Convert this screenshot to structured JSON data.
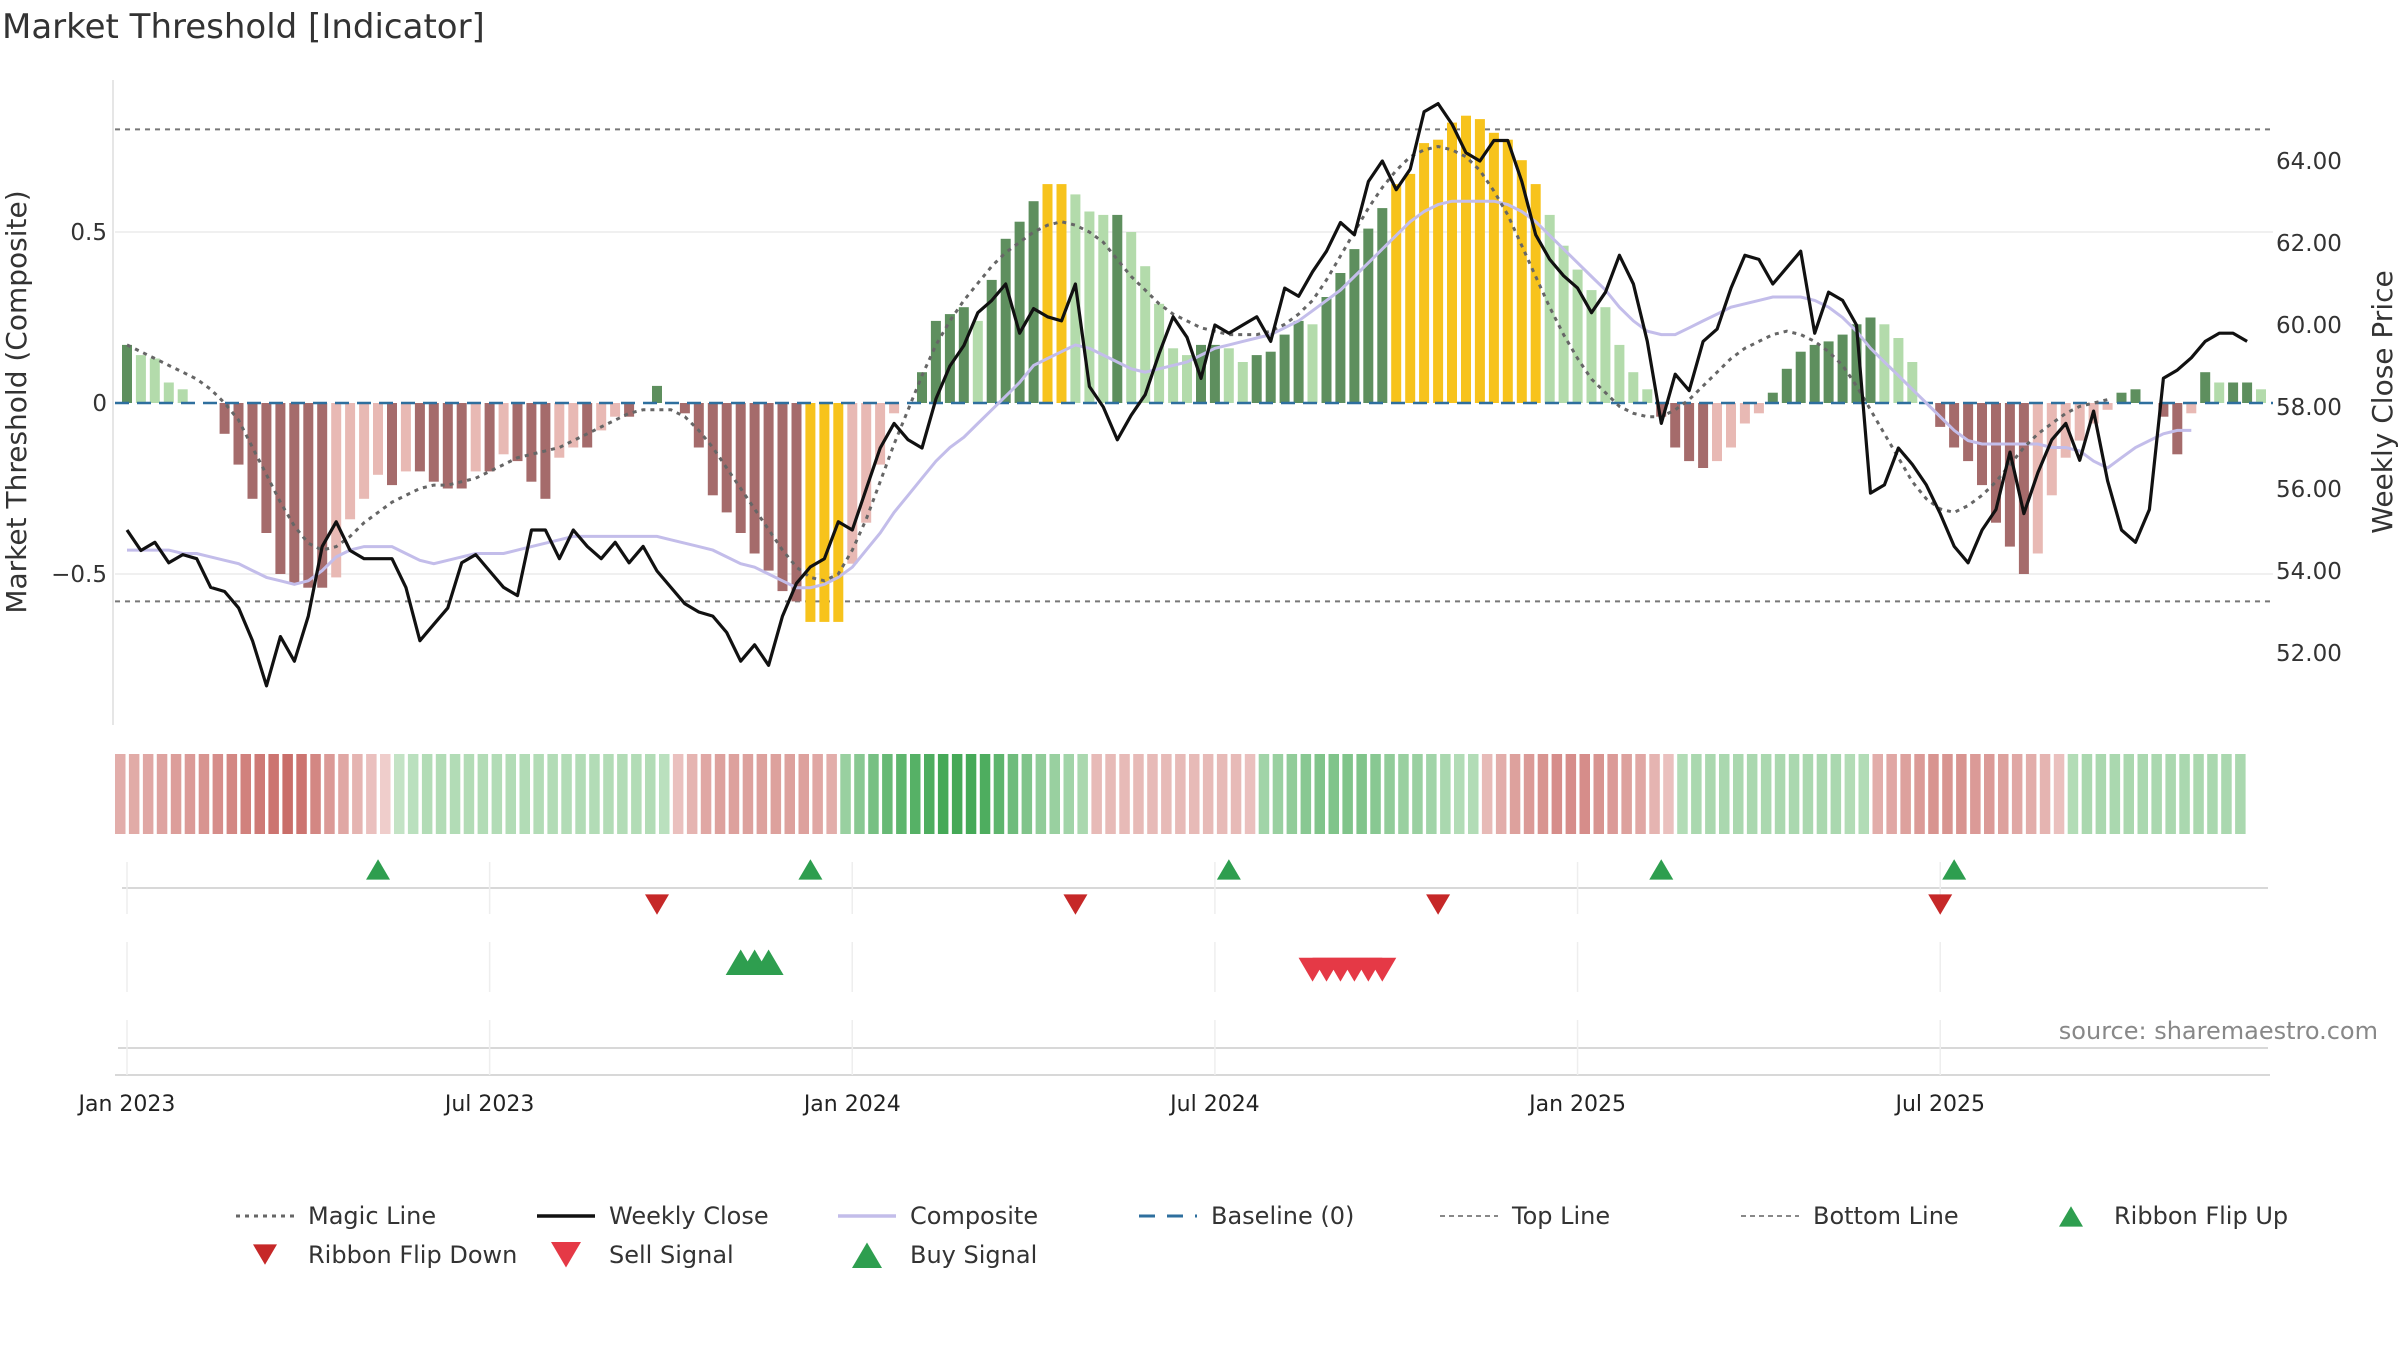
{
  "title": "Market Threshold [Indicator]",
  "source": "source: sharemaestro.com",
  "chart_data": {
    "type": "bar",
    "left_axis": {
      "label": "Market Threshold (Composite)",
      "ticks": [
        "0.5",
        "0",
        "−0.5"
      ],
      "tick_values": [
        0.5,
        0,
        -0.5
      ],
      "range": [
        -0.95,
        0.95
      ]
    },
    "right_axis": {
      "label": "Weekly Close Price",
      "ticks": [
        "64.00",
        "62.00",
        "60.00",
        "58.00",
        "56.00",
        "54.00",
        "52.00"
      ],
      "tick_values": [
        64,
        62,
        60,
        58,
        56,
        54,
        52
      ],
      "range": [
        50.3,
        65.9
      ]
    },
    "x_axis": {
      "ticks": [
        "Jan 2023",
        "Jul 2023",
        "Jan 2024",
        "Jul 2024",
        "Jan 2025",
        "Jul 2025"
      ],
      "tick_weeks": [
        1,
        27,
        53,
        79,
        105,
        131
      ]
    },
    "reference_lines": {
      "top": 0.8,
      "bottom": -0.58,
      "baseline": 0
    },
    "histogram": [
      0.17,
      0.14,
      0.13,
      0.06,
      0.04,
      0.0,
      0.0,
      -0.09,
      -0.18,
      -0.28,
      -0.38,
      -0.5,
      -0.53,
      -0.54,
      -0.54,
      -0.51,
      -0.34,
      -0.28,
      -0.21,
      -0.24,
      -0.2,
      -0.2,
      -0.23,
      -0.25,
      -0.25,
      -0.2,
      -0.2,
      -0.15,
      -0.17,
      -0.23,
      -0.28,
      -0.16,
      -0.13,
      -0.13,
      -0.08,
      -0.04,
      -0.04,
      0.0,
      0.05,
      0.0,
      -0.03,
      -0.13,
      -0.27,
      -0.32,
      -0.38,
      -0.44,
      -0.49,
      -0.55,
      -0.58,
      -0.64,
      -0.64,
      -0.64,
      -0.47,
      -0.35,
      -0.18,
      -0.03,
      0.0,
      0.09,
      0.24,
      0.26,
      0.28,
      0.24,
      0.36,
      0.48,
      0.53,
      0.59,
      0.64,
      0.64,
      0.61,
      0.56,
      0.55,
      0.55,
      0.5,
      0.4,
      0.29,
      0.16,
      0.14,
      0.17,
      0.17,
      0.16,
      0.12,
      0.14,
      0.15,
      0.2,
      0.24,
      0.23,
      0.31,
      0.38,
      0.45,
      0.51,
      0.57,
      0.64,
      0.67,
      0.76,
      0.77,
      0.82,
      0.84,
      0.83,
      0.79,
      0.77,
      0.71,
      0.64,
      0.55,
      0.46,
      0.39,
      0.33,
      0.28,
      0.17,
      0.09,
      0.04,
      -0.04,
      -0.13,
      -0.17,
      -0.19,
      -0.17,
      -0.13,
      -0.06,
      -0.03,
      0.03,
      0.1,
      0.15,
      0.17,
      0.18,
      0.2,
      0.23,
      0.25,
      0.23,
      0.19,
      0.12,
      0.0,
      -0.07,
      -0.13,
      -0.17,
      -0.24,
      -0.35,
      -0.42,
      -0.5,
      -0.44,
      -0.27,
      -0.16,
      -0.11,
      -0.06,
      -0.02,
      0.03,
      0.04,
      0.0,
      -0.04,
      -0.15,
      -0.03,
      0.09,
      0.06,
      0.06,
      0.06,
      0.04
    ],
    "weekly_close": [
      55.0,
      54.5,
      54.7,
      54.2,
      54.4,
      54.3,
      53.6,
      53.5,
      53.1,
      52.3,
      51.2,
      52.4,
      51.8,
      52.9,
      54.6,
      55.2,
      54.5,
      54.3,
      54.3,
      54.3,
      53.6,
      52.3,
      52.7,
      53.1,
      54.2,
      54.4,
      54.0,
      53.6,
      53.4,
      55.0,
      55.0,
      54.3,
      55.0,
      54.6,
      54.3,
      54.7,
      54.2,
      54.6,
      54.0,
      53.6,
      53.2,
      53.0,
      52.9,
      52.5,
      51.8,
      52.2,
      51.7,
      52.9,
      53.7,
      54.1,
      54.3,
      55.2,
      55.0,
      56.0,
      57.0,
      57.6,
      57.2,
      57.0,
      58.2,
      59.0,
      59.5,
      60.3,
      60.6,
      61.0,
      59.8,
      60.4,
      60.2,
      60.1,
      61.0,
      58.5,
      58.0,
      57.2,
      57.8,
      58.3,
      59.3,
      60.2,
      59.7,
      58.7,
      60.0,
      59.8,
      60.0,
      60.2,
      59.6,
      60.9,
      60.7,
      61.3,
      61.8,
      62.5,
      62.2,
      63.5,
      64.0,
      63.3,
      63.8,
      65.2,
      65.4,
      64.9,
      64.2,
      64.0,
      64.5,
      64.5,
      63.5,
      62.2,
      61.6,
      61.2,
      60.9,
      60.3,
      60.8,
      61.7,
      61.0,
      59.6,
      57.6,
      58.8,
      58.4,
      59.6,
      59.9,
      60.9,
      61.7,
      61.6,
      61.0,
      61.4,
      61.8,
      59.8,
      60.8,
      60.6,
      60.0,
      55.9,
      56.1,
      57.0,
      56.6,
      56.1,
      55.4,
      54.6,
      54.2,
      55.0,
      55.5,
      56.9,
      55.4,
      56.4,
      57.2,
      57.6,
      56.7,
      57.9,
      56.2,
      55.0,
      54.7,
      55.5,
      58.7,
      58.9,
      59.2,
      59.6,
      59.8,
      59.8,
      59.6
    ],
    "magic_line": [
      0.17,
      0.15,
      0.13,
      0.11,
      0.09,
      0.07,
      0.04,
      0.0,
      -0.05,
      -0.13,
      -0.21,
      -0.29,
      -0.36,
      -0.41,
      -0.43,
      -0.42,
      -0.39,
      -0.35,
      -0.32,
      -0.29,
      -0.27,
      -0.25,
      -0.24,
      -0.24,
      -0.23,
      -0.22,
      -0.2,
      -0.18,
      -0.16,
      -0.15,
      -0.14,
      -0.13,
      -0.11,
      -0.09,
      -0.07,
      -0.05,
      -0.03,
      -0.02,
      -0.02,
      -0.02,
      -0.04,
      -0.08,
      -0.13,
      -0.19,
      -0.25,
      -0.31,
      -0.37,
      -0.43,
      -0.48,
      -0.51,
      -0.52,
      -0.5,
      -0.43,
      -0.34,
      -0.23,
      -0.12,
      -0.02,
      0.08,
      0.17,
      0.24,
      0.3,
      0.35,
      0.4,
      0.44,
      0.47,
      0.5,
      0.52,
      0.53,
      0.52,
      0.5,
      0.47,
      0.42,
      0.37,
      0.33,
      0.29,
      0.26,
      0.24,
      0.22,
      0.21,
      0.2,
      0.2,
      0.2,
      0.21,
      0.23,
      0.26,
      0.3,
      0.36,
      0.43,
      0.5,
      0.57,
      0.63,
      0.68,
      0.72,
      0.74,
      0.75,
      0.74,
      0.72,
      0.68,
      0.62,
      0.55,
      0.46,
      0.37,
      0.28,
      0.2,
      0.13,
      0.07,
      0.03,
      -0.01,
      -0.03,
      -0.04,
      -0.04,
      -0.02,
      0.01,
      0.05,
      0.09,
      0.13,
      0.16,
      0.18,
      0.2,
      0.21,
      0.2,
      0.18,
      0.15,
      0.11,
      0.05,
      -0.02,
      -0.09,
      -0.16,
      -0.23,
      -0.28,
      -0.31,
      -0.32,
      -0.3,
      -0.27,
      -0.23,
      -0.18,
      -0.13,
      -0.09,
      -0.06,
      -0.03,
      -0.01,
      0.0,
      0.01
    ],
    "composite": [
      -0.43,
      -0.43,
      -0.43,
      -0.43,
      -0.44,
      -0.44,
      -0.45,
      -0.46,
      -0.47,
      -0.49,
      -0.51,
      -0.52,
      -0.53,
      -0.52,
      -0.49,
      -0.45,
      -0.43,
      -0.42,
      -0.42,
      -0.42,
      -0.44,
      -0.46,
      -0.47,
      -0.46,
      -0.45,
      -0.44,
      -0.44,
      -0.44,
      -0.43,
      -0.42,
      -0.41,
      -0.4,
      -0.39,
      -0.39,
      -0.39,
      -0.39,
      -0.39,
      -0.39,
      -0.39,
      -0.4,
      -0.41,
      -0.42,
      -0.43,
      -0.45,
      -0.47,
      -0.48,
      -0.5,
      -0.52,
      -0.54,
      -0.54,
      -0.53,
      -0.51,
      -0.48,
      -0.43,
      -0.38,
      -0.32,
      -0.27,
      -0.22,
      -0.17,
      -0.13,
      -0.1,
      -0.06,
      -0.02,
      0.02,
      0.06,
      0.11,
      0.13,
      0.15,
      0.17,
      0.16,
      0.14,
      0.12,
      0.1,
      0.09,
      0.1,
      0.11,
      0.12,
      0.14,
      0.16,
      0.17,
      0.18,
      0.19,
      0.2,
      0.22,
      0.24,
      0.27,
      0.3,
      0.33,
      0.37,
      0.41,
      0.45,
      0.49,
      0.53,
      0.56,
      0.58,
      0.59,
      0.59,
      0.59,
      0.59,
      0.58,
      0.56,
      0.53,
      0.49,
      0.45,
      0.41,
      0.37,
      0.33,
      0.28,
      0.24,
      0.21,
      0.2,
      0.2,
      0.22,
      0.24,
      0.26,
      0.28,
      0.29,
      0.3,
      0.31,
      0.31,
      0.31,
      0.3,
      0.28,
      0.25,
      0.21,
      0.16,
      0.12,
      0.08,
      0.04,
      0.0,
      -0.04,
      -0.08,
      -0.11,
      -0.12,
      -0.12,
      -0.12,
      -0.12,
      -0.12,
      -0.13,
      -0.13,
      -0.14,
      -0.17,
      -0.19,
      -0.16,
      -0.13,
      -0.11,
      -0.09,
      -0.08,
      -0.08
    ],
    "ribbon": [
      -0.4,
      -0.42,
      -0.45,
      -0.48,
      -0.52,
      -0.55,
      -0.6,
      -0.65,
      -0.7,
      -0.75,
      -0.8,
      -0.85,
      -0.9,
      -0.85,
      -0.7,
      -0.55,
      -0.45,
      -0.35,
      -0.25,
      -0.15,
      0.2,
      0.25,
      0.3,
      0.3,
      0.3,
      0.3,
      0.3,
      0.3,
      0.3,
      0.3,
      0.3,
      0.3,
      0.3,
      0.3,
      0.3,
      0.3,
      0.3,
      0.3,
      0.3,
      0.25,
      -0.25,
      -0.35,
      -0.45,
      -0.5,
      -0.5,
      -0.5,
      -0.5,
      -0.5,
      -0.5,
      -0.5,
      -0.45,
      -0.4,
      0.45,
      0.55,
      0.65,
      0.75,
      0.8,
      0.85,
      0.9,
      0.95,
      0.95,
      0.95,
      0.9,
      0.8,
      0.7,
      0.6,
      0.5,
      0.45,
      0.4,
      0.35,
      -0.3,
      -0.3,
      -0.3,
      -0.3,
      -0.3,
      -0.3,
      -0.3,
      -0.3,
      -0.3,
      -0.3,
      -0.3,
      -0.25,
      0.4,
      0.45,
      0.5,
      0.55,
      0.6,
      0.6,
      0.6,
      0.6,
      0.55,
      0.5,
      0.45,
      0.45,
      0.4,
      0.35,
      0.3,
      0.3,
      -0.3,
      -0.4,
      -0.5,
      -0.55,
      -0.6,
      -0.65,
      -0.65,
      -0.65,
      -0.6,
      -0.55,
      -0.5,
      -0.45,
      -0.35,
      -0.25,
      0.3,
      0.35,
      0.35,
      0.35,
      0.35,
      0.35,
      0.35,
      0.35,
      0.35,
      0.35,
      0.35,
      0.35,
      0.3,
      0.3,
      -0.4,
      -0.45,
      -0.5,
      -0.55,
      -0.6,
      -0.6,
      -0.6,
      -0.55,
      -0.55,
      -0.5,
      -0.45,
      -0.4,
      -0.35,
      -0.25,
      0.3,
      0.35,
      0.35,
      0.35,
      0.35,
      0.35,
      0.35,
      0.35,
      0.35,
      0.35,
      0.35,
      0.35,
      0.35
    ],
    "ribbon_flip_up_weeks": [
      19,
      50,
      80,
      111,
      132
    ],
    "ribbon_flip_down_weeks": [
      39,
      69,
      95,
      131
    ],
    "buy_signal_weeks": [
      45,
      46,
      47
    ],
    "sell_signal_weeks": [
      86,
      87,
      88,
      89,
      90,
      91
    ],
    "legend": [
      {
        "label": "Magic Line",
        "kind": "dotted",
        "color": "#666666"
      },
      {
        "label": "Weekly Close",
        "kind": "solid",
        "color": "#111111"
      },
      {
        "label": "Composite",
        "kind": "solid",
        "color": "#c3bdea"
      },
      {
        "label": "Baseline (0)",
        "kind": "dashed",
        "color": "#2e6f9e"
      },
      {
        "label": "Top Line",
        "kind": "dotted-thin",
        "color": "#888888"
      },
      {
        "label": "Bottom Line",
        "kind": "dotted-thin",
        "color": "#888888"
      },
      {
        "label": "Ribbon Flip Up",
        "kind": "tri-up",
        "color": "#2e9e4f"
      },
      {
        "label": "Ribbon Flip Down",
        "kind": "tri-down",
        "color": "#c62828"
      },
      {
        "label": "Sell Signal",
        "kind": "tri-down",
        "color": "#e53946"
      },
      {
        "label": "Buy Signal",
        "kind": "tri-up",
        "color": "#2e9e4f"
      }
    ],
    "colors": {
      "bar_pos_strong": "#5e8f5e",
      "bar_pos_weak": "#b3dbab",
      "bar_neg_strong": "#a56b6b",
      "bar_neg_weak": "#e8b9b4",
      "bar_extreme": "#f7c31c"
    }
  }
}
